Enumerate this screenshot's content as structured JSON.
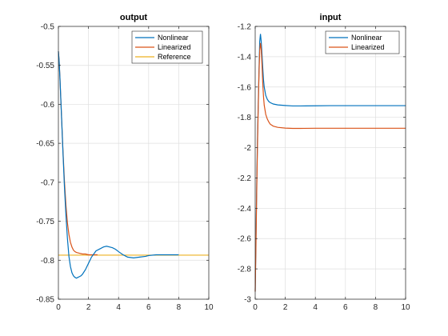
{
  "chart_data": [
    {
      "type": "line",
      "title": "output",
      "xlim": [
        0,
        10
      ],
      "ylim": [
        -0.85,
        -0.5
      ],
      "xticks": [
        "0",
        "2",
        "4",
        "6",
        "8",
        "10"
      ],
      "yticks": [
        "-0.85",
        "-0.8",
        "-0.75",
        "-0.7",
        "-0.65",
        "-0.6",
        "-0.55",
        "-0.5"
      ],
      "grid": true,
      "legend": "top-right",
      "series": [
        {
          "name": "Nonlinear",
          "color": "#0072bd",
          "x": [
            0,
            0.05,
            0.1,
            0.2,
            0.3,
            0.4,
            0.5,
            0.6,
            0.7,
            0.8,
            0.9,
            1.0,
            1.1,
            1.2,
            1.3,
            1.4,
            1.5,
            1.6,
            1.8,
            2.0,
            2.2,
            2.5,
            2.8,
            3.0,
            3.2,
            3.4,
            3.6,
            3.8,
            4.0,
            4.3,
            4.6,
            5.0,
            5.4,
            5.8,
            6.0,
            6.5,
            7.0,
            7.5,
            8.0
          ],
          "y": [
            -0.532,
            -0.545,
            -0.565,
            -0.612,
            -0.66,
            -0.705,
            -0.742,
            -0.772,
            -0.795,
            -0.808,
            -0.816,
            -0.82,
            -0.822,
            -0.823,
            -0.822,
            -0.821,
            -0.82,
            -0.818,
            -0.812,
            -0.804,
            -0.796,
            -0.788,
            -0.785,
            -0.783,
            -0.782,
            -0.783,
            -0.784,
            -0.786,
            -0.789,
            -0.793,
            -0.796,
            -0.797,
            -0.796,
            -0.795,
            -0.794,
            -0.793,
            -0.793,
            -0.793,
            -0.793
          ]
        },
        {
          "name": "Linearized",
          "color": "#d95319",
          "x": [
            0,
            0.05,
            0.1,
            0.2,
            0.3,
            0.4,
            0.5,
            0.6,
            0.7,
            0.8,
            0.9,
            1.0,
            1.1,
            1.2,
            1.4,
            1.6,
            1.8,
            2.0,
            2.3,
            2.6
          ],
          "y": [
            -0.532,
            -0.545,
            -0.565,
            -0.612,
            -0.658,
            -0.698,
            -0.729,
            -0.752,
            -0.767,
            -0.777,
            -0.783,
            -0.787,
            -0.789,
            -0.79,
            -0.791,
            -0.792,
            -0.792,
            -0.793,
            -0.793,
            -0.793
          ]
        },
        {
          "name": "Reference",
          "color": "#edb120",
          "x": [
            0,
            10
          ],
          "y": [
            -0.7935,
            -0.7935
          ]
        }
      ]
    },
    {
      "type": "line",
      "title": "input",
      "xlim": [
        0,
        10
      ],
      "ylim": [
        -3,
        -1.2
      ],
      "xticks": [
        "0",
        "2",
        "4",
        "6",
        "8",
        "10"
      ],
      "yticks": [
        "-3",
        "-2.8",
        "-2.6",
        "-2.4",
        "-2.2",
        "-2",
        "-1.8",
        "-1.6",
        "-1.4",
        "-1.2"
      ],
      "grid": true,
      "legend": "top-right",
      "series": [
        {
          "name": "Nonlinear",
          "color": "#0072bd",
          "x": [
            0,
            0.05,
            0.1,
            0.15,
            0.2,
            0.25,
            0.3,
            0.35,
            0.4,
            0.45,
            0.5,
            0.55,
            0.6,
            0.7,
            0.8,
            0.9,
            1.0,
            1.2,
            1.5,
            2.0,
            2.5,
            3.0,
            4.0,
            5.0,
            6.0,
            7.0,
            8.0,
            9.0,
            10.0
          ],
          "y": [
            -2.95,
            -2.6,
            -2.25,
            -1.95,
            -1.72,
            -1.5,
            -1.3,
            -1.25,
            -1.3,
            -1.38,
            -1.47,
            -1.55,
            -1.6,
            -1.655,
            -1.68,
            -1.695,
            -1.703,
            -1.712,
            -1.718,
            -1.722,
            -1.725,
            -1.725,
            -1.724,
            -1.723,
            -1.723,
            -1.723,
            -1.723,
            -1.723,
            -1.723
          ]
        },
        {
          "name": "Linearized",
          "color": "#d95319",
          "x": [
            0,
            0.05,
            0.1,
            0.15,
            0.2,
            0.25,
            0.3,
            0.35,
            0.4,
            0.45,
            0.5,
            0.55,
            0.6,
            0.7,
            0.8,
            0.9,
            1.0,
            1.2,
            1.5,
            2.0,
            2.5,
            3.0,
            4.0,
            5.0,
            6.0,
            7.0,
            8.0,
            9.0,
            10.0
          ],
          "y": [
            -2.95,
            -2.65,
            -2.3,
            -2.0,
            -1.75,
            -1.52,
            -1.36,
            -1.31,
            -1.35,
            -1.45,
            -1.57,
            -1.66,
            -1.72,
            -1.78,
            -1.81,
            -1.83,
            -1.845,
            -1.858,
            -1.866,
            -1.871,
            -1.873,
            -1.873,
            -1.872,
            -1.872,
            -1.872,
            -1.872,
            -1.872,
            -1.872,
            -1.872
          ]
        }
      ]
    }
  ]
}
